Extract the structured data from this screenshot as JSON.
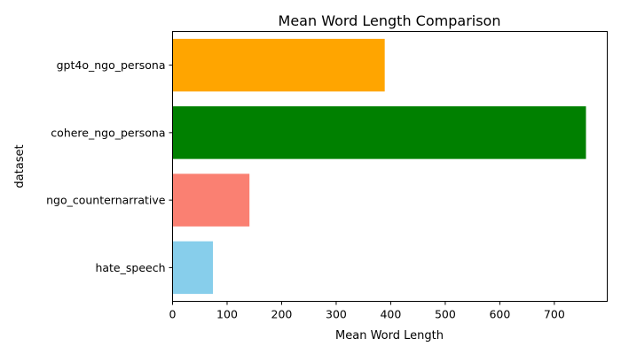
{
  "chart_data": {
    "type": "bar",
    "orientation": "horizontal",
    "title": "Mean Word Length Comparison",
    "xlabel": "Mean Word Length",
    "ylabel": "dataset",
    "categories": [
      "hate_speech",
      "ngo_counternarrative",
      "cohere_ngo_persona",
      "gpt4o_ngo_persona"
    ],
    "values": [
      74,
      141,
      758,
      389
    ],
    "colors": [
      "#87ceeb",
      "#fa8072",
      "#008000",
      "#ffa500"
    ],
    "xlim": [
      0,
      800
    ],
    "xticks": [
      0,
      100,
      200,
      300,
      400,
      500,
      600,
      700
    ],
    "grid": false,
    "legend": "none"
  }
}
